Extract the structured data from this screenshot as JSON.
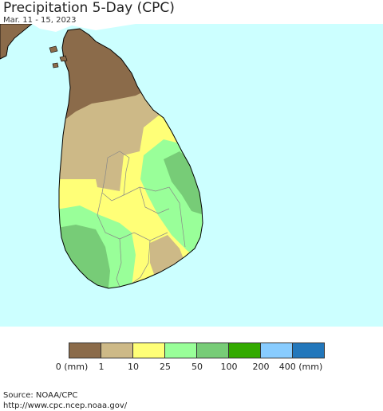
{
  "title": "Precipitation 5-Day (CPC)",
  "subtitle": "Mar. 11 - 15, 2023",
  "colors": {
    "ocean": "#ccffff",
    "land_outside": "#ffffff"
  },
  "legend": {
    "unit_label_left": "0 (mm)",
    "labels": [
      "1",
      "10",
      "25",
      "50",
      "100",
      "200",
      "400 (mm)"
    ],
    "colors": [
      "#8b6b4a",
      "#cdb987",
      "#ffff77",
      "#99ff99",
      "#77cc77",
      "#33aa00",
      "#88ccff",
      "#2277bb"
    ]
  },
  "source": {
    "line1": "Source: NOAA/CPC",
    "line2": "http://www.cpc.ncep.noaa.gov/"
  }
}
